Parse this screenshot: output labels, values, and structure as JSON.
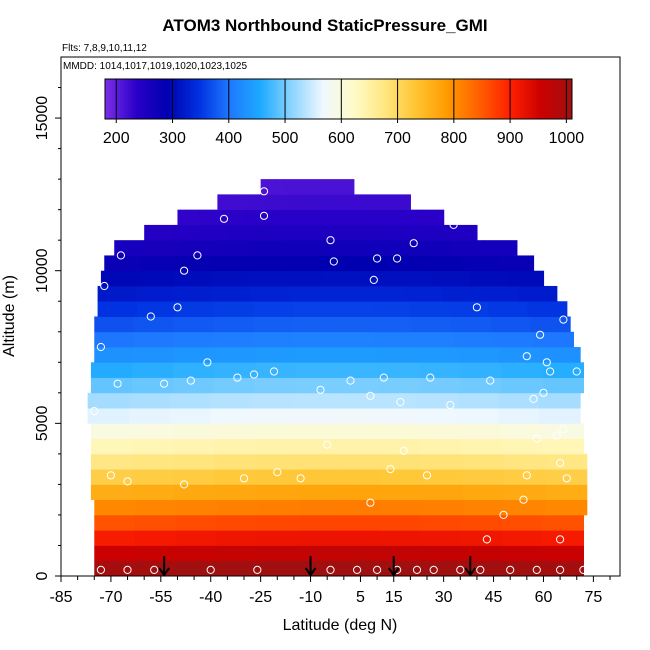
{
  "chart_data": {
    "type": "heatmap",
    "title": "ATOM3 Northbound StaticPressure_GMI",
    "subtitle_flights": "Flts: 7,8,9,10,11,12",
    "subtitle_dates": "MMDD: 1014,1017,1019,1020,1023,1025",
    "xlabel": "Latitude (deg N)",
    "ylabel": "Altitude (m)",
    "xlim": [
      -85,
      83
    ],
    "ylim": [
      0,
      17000
    ],
    "x_ticks": [
      -85,
      -70,
      -55,
      -40,
      -25,
      -10,
      5,
      15,
      30,
      45,
      60,
      75
    ],
    "x_tick_labels": [
      "-85",
      "-70",
      "-55",
      "-40",
      "-25",
      "-10",
      "5",
      "15",
      "30",
      "45",
      "60",
      "75"
    ],
    "y_ticks": [
      0,
      5000,
      10000,
      15000
    ],
    "y_tick_labels": [
      "0",
      "5000",
      "10000",
      "15000"
    ],
    "colorbar": {
      "min": 180,
      "max": 1010,
      "ticks": [
        200,
        300,
        400,
        500,
        600,
        700,
        800,
        900,
        1000
      ],
      "tick_labels": [
        "200",
        "300",
        "400",
        "500",
        "600",
        "700",
        "800",
        "900",
        "1000"
      ],
      "colors": [
        "#7b2ee8",
        "#2a00c8",
        "#0000b0",
        "#0030e0",
        "#1e78ff",
        "#1eaaff",
        "#8cd4ff",
        "#f0f8ff",
        "#fffbc8",
        "#ffe680",
        "#ffc430",
        "#ff9a00",
        "#ff6000",
        "#ff2000",
        "#cc0000",
        "#a01010"
      ]
    },
    "altitude_bands_m": [
      0,
      500,
      1000,
      1500,
      2000,
      2500,
      3000,
      3500,
      4000,
      4500,
      5000,
      5500,
      6000,
      6500,
      7000,
      7500,
      8000,
      8500,
      9000,
      9500,
      10000,
      10500,
      11000,
      11500,
      12000,
      12500
    ],
    "band_pressure_hpa": [
      1005,
      958,
      910,
      857,
      807,
      765,
      718,
      676,
      636,
      598,
      560,
      527,
      493,
      461,
      430,
      401,
      373,
      349,
      321,
      300,
      279,
      260,
      243,
      228,
      214,
      204
    ],
    "band_lat_extent": [
      [
        -75,
        72
      ],
      [
        -75,
        72
      ],
      [
        -75,
        72
      ],
      [
        -75,
        72
      ],
      [
        -75,
        73
      ],
      [
        -76,
        73
      ],
      [
        -76,
        73
      ],
      [
        -76,
        73
      ],
      [
        -76,
        72
      ],
      [
        -76,
        72
      ],
      [
        -77,
        71
      ],
      [
        -77,
        71
      ],
      [
        -76,
        72
      ],
      [
        -76,
        72
      ],
      [
        -75,
        71
      ],
      [
        -75,
        69
      ],
      [
        -75,
        68
      ],
      [
        -74,
        67
      ],
      [
        -74,
        64
      ],
      [
        -73,
        60
      ],
      [
        -72,
        57
      ],
      [
        -69,
        52
      ],
      [
        -60,
        40
      ],
      [
        -50,
        30
      ],
      [
        -38,
        20
      ],
      [
        -25,
        3
      ]
    ],
    "profile_latitudes": [
      -54,
      -10,
      15,
      38
    ],
    "obs_points": [
      [
        -75,
        5400
      ],
      [
        -72,
        9500
      ],
      [
        -73,
        7500
      ],
      [
        -68,
        6300
      ],
      [
        -67,
        10500
      ],
      [
        -58,
        8500
      ],
      [
        -54,
        6300
      ],
      [
        -50,
        8800
      ],
      [
        -48,
        10000
      ],
      [
        -46,
        6400
      ],
      [
        -44,
        10500
      ],
      [
        -41,
        7000
      ],
      [
        -36,
        11700
      ],
      [
        -32,
        6500
      ],
      [
        -27,
        6600
      ],
      [
        -24,
        11800
      ],
      [
        -21,
        6700
      ],
      [
        -13,
        3200
      ],
      [
        -7,
        6100
      ],
      [
        -5,
        4300
      ],
      [
        -4,
        11000
      ],
      [
        -3,
        10300
      ],
      [
        2,
        6400
      ],
      [
        8,
        2400
      ],
      [
        8,
        5900
      ],
      [
        9,
        9700
      ],
      [
        10,
        10400
      ],
      [
        12,
        6500
      ],
      [
        14,
        3500
      ],
      [
        16,
        10400
      ],
      [
        17,
        5700
      ],
      [
        18,
        4100
      ],
      [
        21,
        10900
      ],
      [
        26,
        6500
      ],
      [
        32,
        5600
      ],
      [
        33,
        11500
      ],
      [
        40,
        8800
      ],
      [
        43,
        1200
      ],
      [
        44,
        6400
      ],
      [
        48,
        2000
      ],
      [
        54,
        2500
      ],
      [
        55,
        7200
      ],
      [
        57,
        5800
      ],
      [
        58,
        4500
      ],
      [
        59,
        7900
      ],
      [
        60,
        6000
      ],
      [
        61,
        7000
      ],
      [
        62,
        6700
      ],
      [
        64,
        4600
      ],
      [
        65,
        3700
      ],
      [
        65,
        1200
      ],
      [
        66,
        4800
      ],
      [
        66,
        8400
      ],
      [
        67,
        3200
      ],
      [
        70,
        6700
      ],
      [
        72,
        200
      ],
      [
        -73,
        200
      ],
      [
        -65,
        200
      ],
      [
        -57,
        200
      ],
      [
        -40,
        200
      ],
      [
        -26,
        200
      ],
      [
        -4,
        200
      ],
      [
        4,
        200
      ],
      [
        10,
        200
      ],
      [
        16,
        200
      ],
      [
        22,
        200
      ],
      [
        27,
        200
      ],
      [
        35,
        200
      ],
      [
        41,
        200
      ],
      [
        50,
        200
      ],
      [
        58,
        200
      ],
      [
        65,
        200
      ],
      [
        -70,
        3300
      ],
      [
        -65,
        3100
      ],
      [
        -48,
        3000
      ],
      [
        -30,
        3200
      ],
      [
        -20,
        3400
      ],
      [
        25,
        3300
      ],
      [
        55,
        3300
      ],
      [
        -24,
        12600
      ]
    ]
  }
}
